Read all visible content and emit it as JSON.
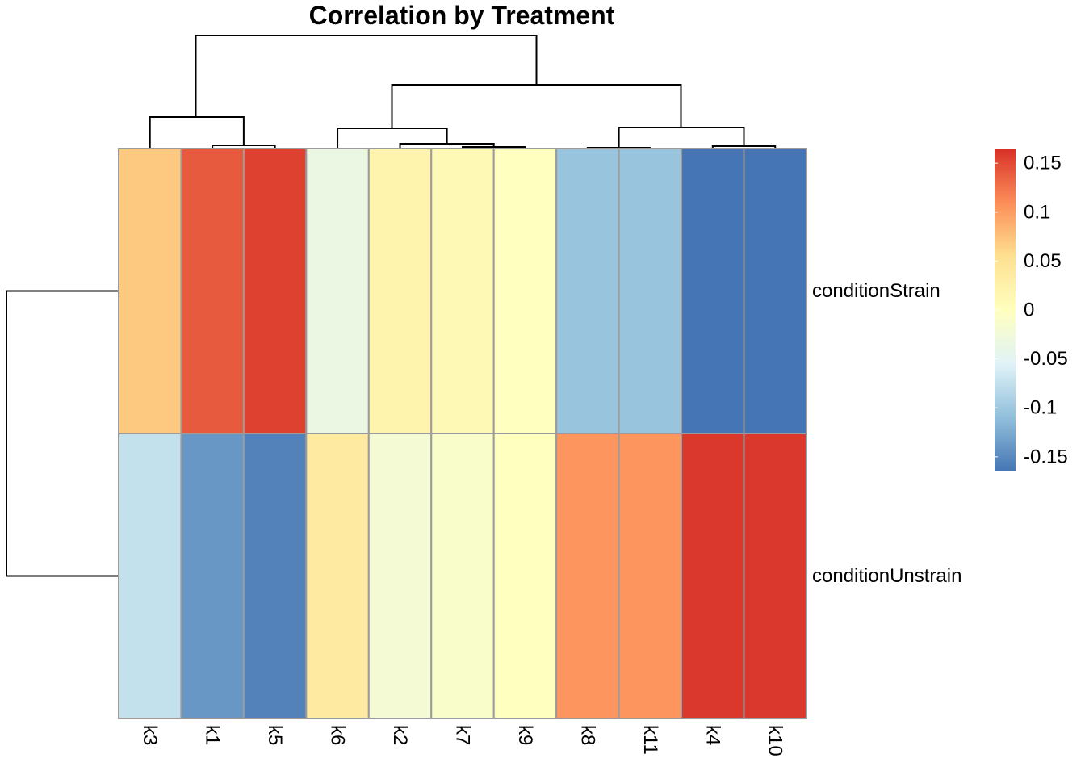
{
  "chart_data": {
    "type": "heatmap",
    "title": "Correlation by Treatment",
    "columns": [
      "k3",
      "k1",
      "k5",
      "k6",
      "k2",
      "k7",
      "k9",
      "k8",
      "k11",
      "k4",
      "k10"
    ],
    "rows": [
      "conditionStrain",
      "conditionUnstrain"
    ],
    "values": [
      [
        0.07,
        0.14,
        0.155,
        -0.035,
        0.02,
        0.01,
        0.0,
        -0.105,
        -0.105,
        -0.165,
        -0.165
      ],
      [
        -0.075,
        -0.14,
        -0.155,
        0.035,
        -0.02,
        -0.01,
        0.0,
        0.105,
        0.105,
        0.16,
        0.16
      ]
    ],
    "color_scale": {
      "min": -0.165,
      "max": 0.165,
      "stops": [
        {
          "value": -0.165,
          "color": "#4575b4"
        },
        {
          "value": -0.11,
          "color": "#91bfdb"
        },
        {
          "value": -0.055,
          "color": "#e0f3f8"
        },
        {
          "value": 0.0,
          "color": "#ffffbf"
        },
        {
          "value": 0.055,
          "color": "#fee090"
        },
        {
          "value": 0.11,
          "color": "#fc8d59"
        },
        {
          "value": 0.165,
          "color": "#d73027"
        }
      ]
    },
    "legend": {
      "ticks": [
        0.15,
        0.1,
        0.05,
        0,
        -0.05,
        -0.1,
        -0.15
      ],
      "tick_labels": [
        "0.15",
        "0.1",
        "0.05",
        "0",
        "-0.05",
        "-0.1",
        "-0.15"
      ],
      "placement": "right"
    },
    "column_dendrogram": true,
    "row_dendrogram": true
  }
}
